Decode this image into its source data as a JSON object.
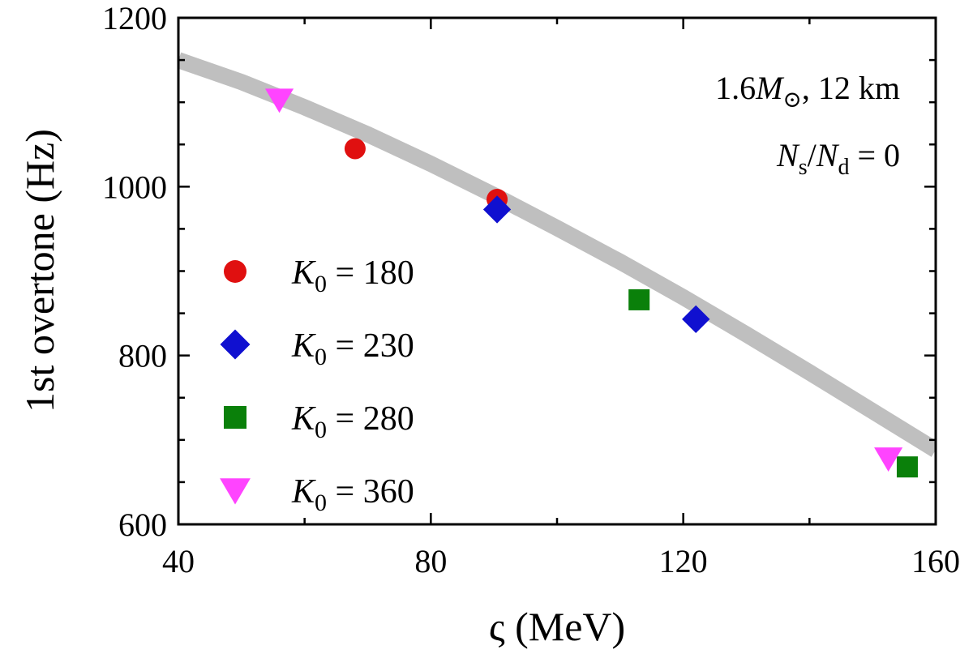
{
  "chart_data": {
    "type": "scatter",
    "xlabel": "ς (MeV)",
    "ylabel": "1st overtone (Hz)",
    "xlim": [
      40,
      160
    ],
    "ylim": [
      600,
      1200
    ],
    "x_ticks": [
      40,
      80,
      120,
      160
    ],
    "y_ticks": [
      600,
      800,
      1000,
      1200
    ],
    "x_tick_labels": [
      "40",
      "80",
      "120",
      "160"
    ],
    "y_tick_labels": [
      "600",
      "800",
      "1000",
      "1200"
    ],
    "grid": false,
    "legend_position": "center-left",
    "annotations": [
      {
        "id": "mass_radius",
        "prefix": "1.6",
        "symbol": "M",
        "subscript": "⊙",
        "suffix": ", 12 km"
      },
      {
        "id": "ratio",
        "num": "N",
        "num_sub": "s",
        "den": "N",
        "den_sub": "d",
        "rhs": " = 0"
      }
    ],
    "fit_curve": {
      "color": "#bfbfbf",
      "x": [
        40,
        50,
        60,
        70,
        80,
        90,
        100,
        110,
        120,
        130,
        140,
        150,
        160
      ],
      "y": [
        1150,
        1124,
        1094,
        1062,
        1027,
        990,
        951,
        911,
        869,
        825,
        780,
        734,
        688
      ]
    },
    "series": [
      {
        "name": "K0 = 180",
        "label_var": "K",
        "label_sub": "0",
        "label_rhs": " = 180",
        "marker": "circle",
        "color": "#e01010",
        "points": [
          {
            "x": 68,
            "y": 1045
          },
          {
            "x": 90.5,
            "y": 985
          }
        ]
      },
      {
        "name": "K0 = 230",
        "label_var": "K",
        "label_sub": "0",
        "label_rhs": " = 230",
        "marker": "diamond",
        "color": "#1010d0",
        "points": [
          {
            "x": 90.5,
            "y": 973
          },
          {
            "x": 122,
            "y": 843
          }
        ]
      },
      {
        "name": "K0 = 280",
        "label_var": "K",
        "label_sub": "0",
        "label_rhs": " = 280",
        "marker": "square",
        "color": "#0a800a",
        "points": [
          {
            "x": 113,
            "y": 866
          },
          {
            "x": 155.5,
            "y": 668
          }
        ]
      },
      {
        "name": "K0 = 360",
        "label_var": "K",
        "label_sub": "0",
        "label_rhs": " = 360",
        "marker": "triangle-down",
        "color": "#ff44ff",
        "points": [
          {
            "x": 56,
            "y": 1103
          },
          {
            "x": 152.5,
            "y": 678
          }
        ]
      }
    ]
  }
}
